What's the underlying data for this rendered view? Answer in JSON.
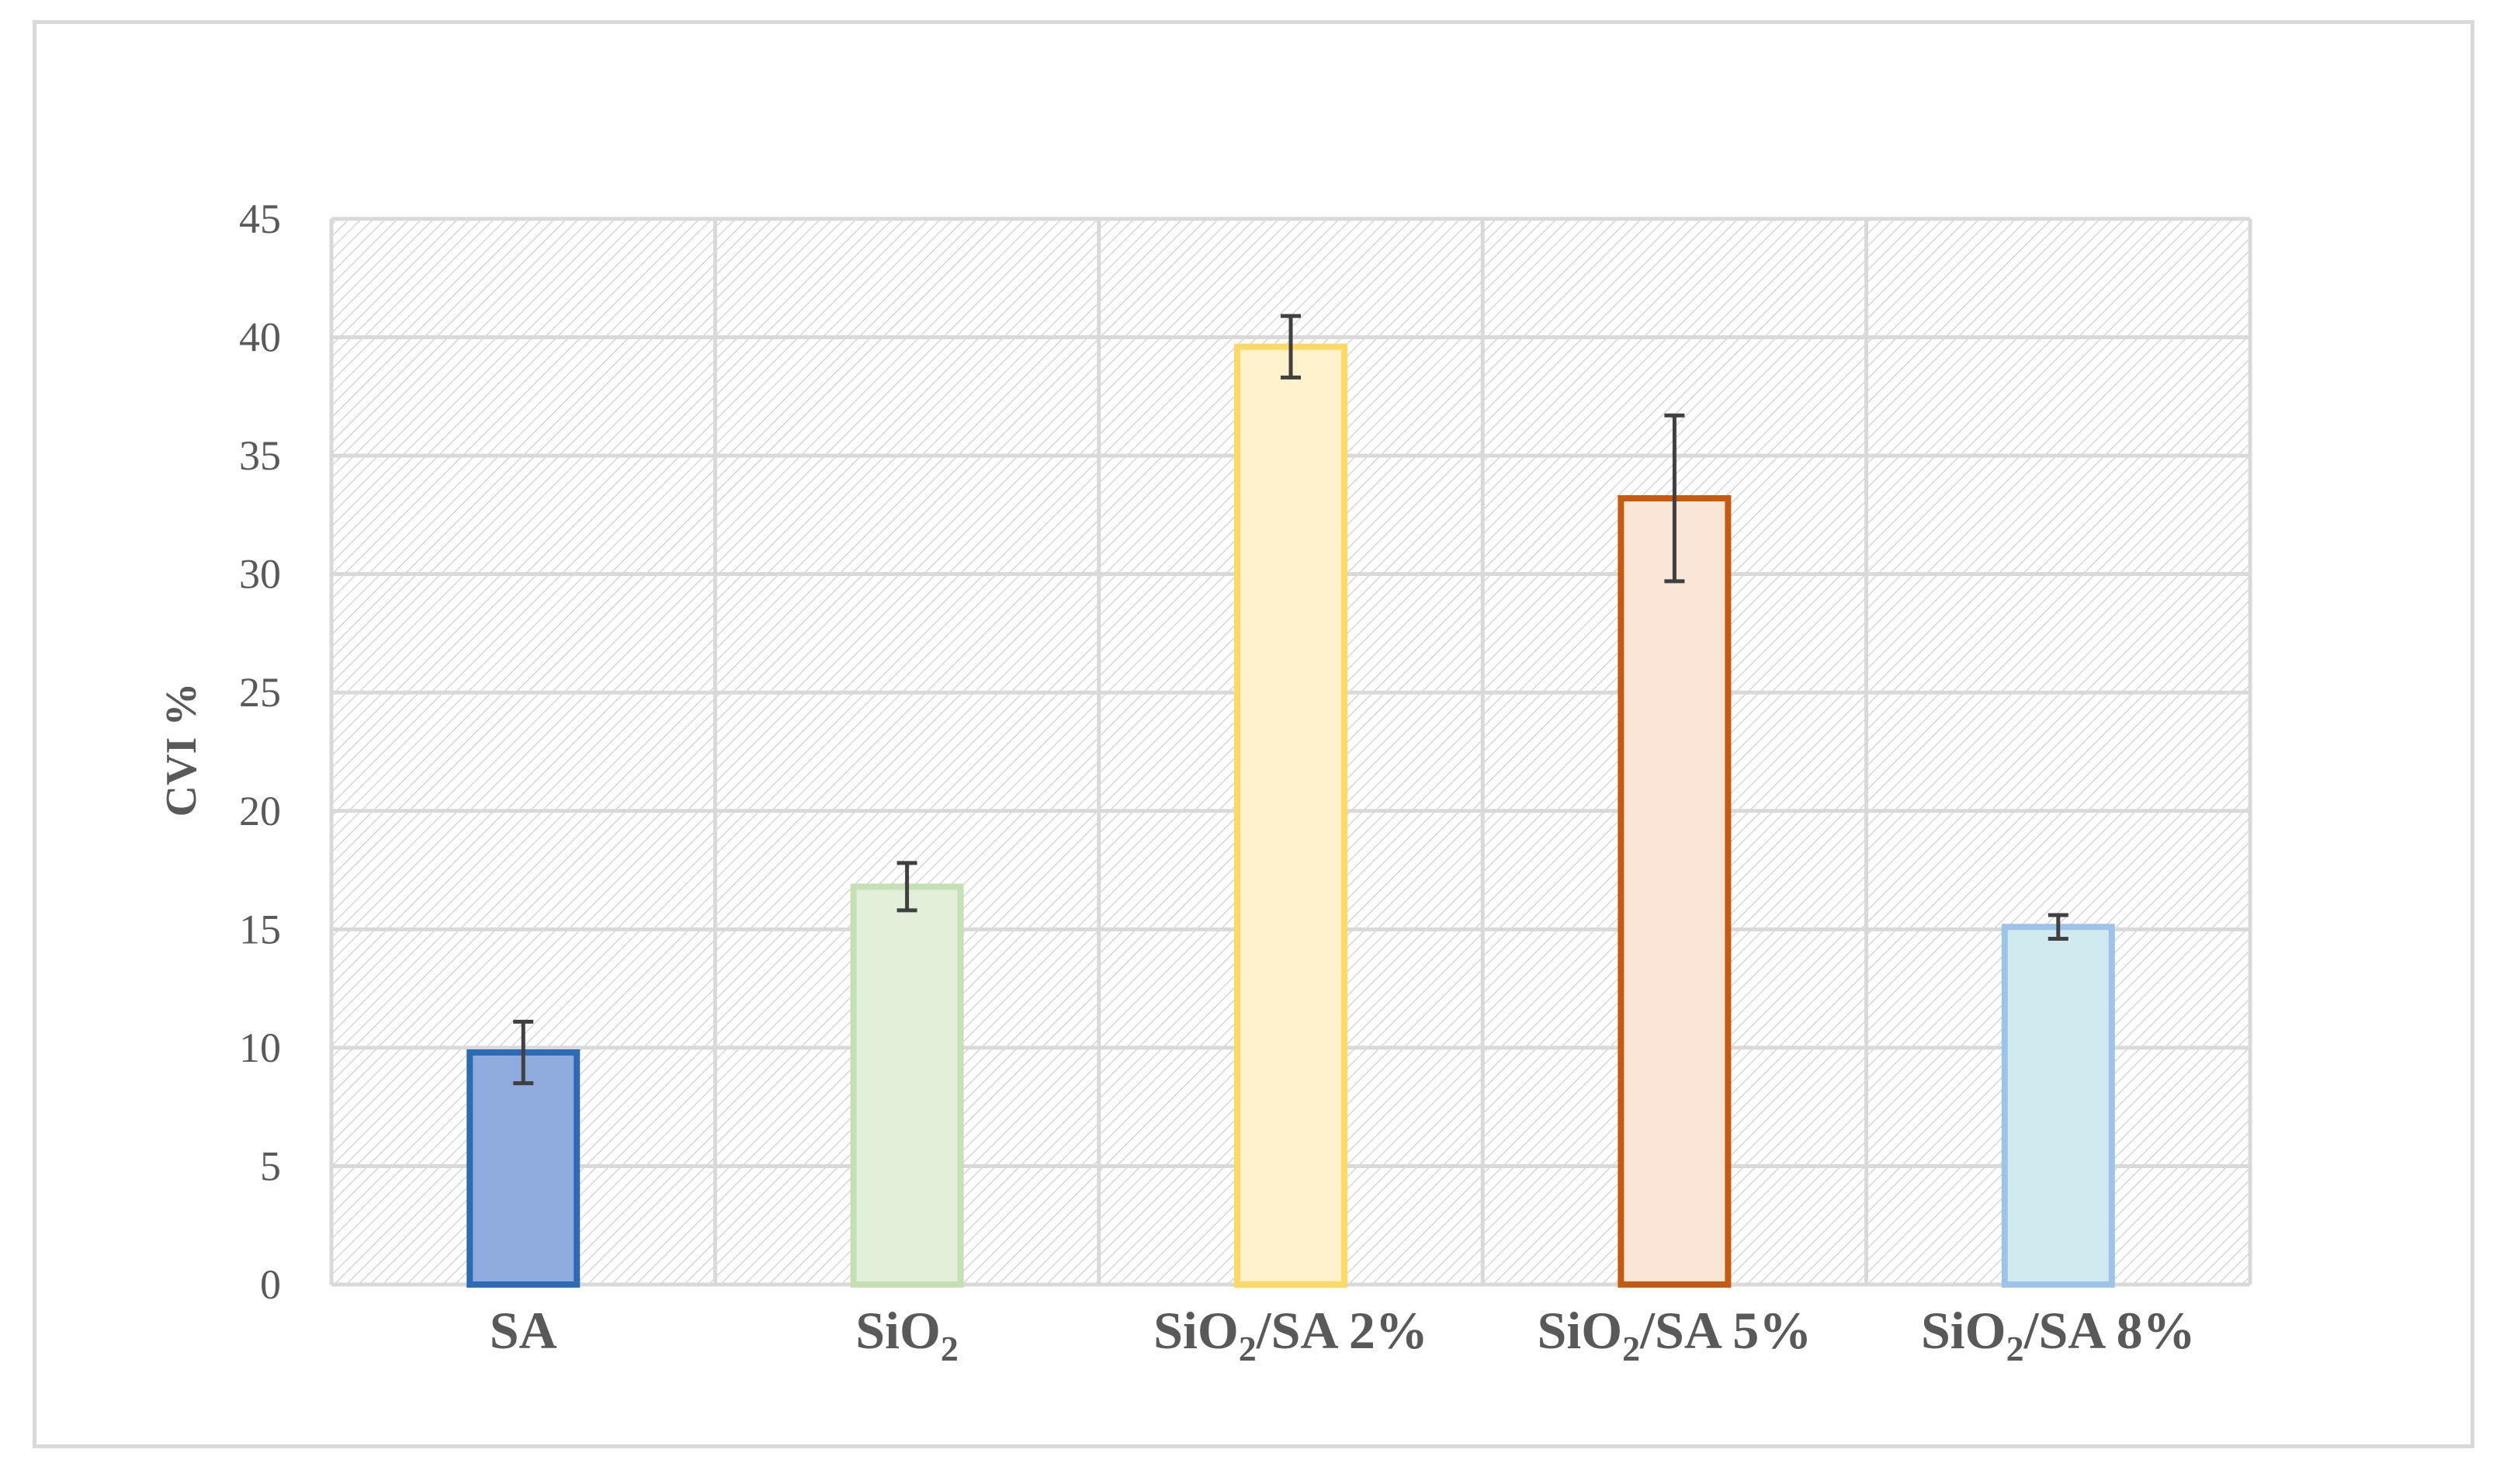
{
  "chart_data": {
    "type": "bar",
    "title": "",
    "xlabel": "",
    "ylabel": "CVI %",
    "ylim": [
      0,
      45
    ],
    "yticks": [
      0,
      5,
      10,
      15,
      20,
      25,
      30,
      35,
      40,
      45
    ],
    "grid": true,
    "legend": "none",
    "categories": [
      {
        "base": "SA",
        "sub": "",
        "tail": ""
      },
      {
        "base": "SiO",
        "sub": "2",
        "tail": ""
      },
      {
        "base": "SiO",
        "sub": "2",
        "tail": "/SA 2%"
      },
      {
        "base": "SiO",
        "sub": "2",
        "tail": "/SA 5%"
      },
      {
        "base": "SiO",
        "sub": "2",
        "tail": "/SA 8%"
      }
    ],
    "values": [
      9.8,
      16.8,
      39.6,
      33.2,
      15.1
    ],
    "errors": [
      1.3,
      1.0,
      1.3,
      3.5,
      0.5
    ],
    "fill_colors": [
      "#8faadc",
      "#e2efd9",
      "#fff2cc",
      "#fbe5d6",
      "#d0ebf0"
    ],
    "stroke_colors": [
      "#2e6bb5",
      "#c5e0b4",
      "#ffd966",
      "#c55a11",
      "#9dc3e6"
    ],
    "error_bar_color": "#404040",
    "grid_color": "#d9d9d9",
    "hatch_color": "#cfcfcf"
  }
}
